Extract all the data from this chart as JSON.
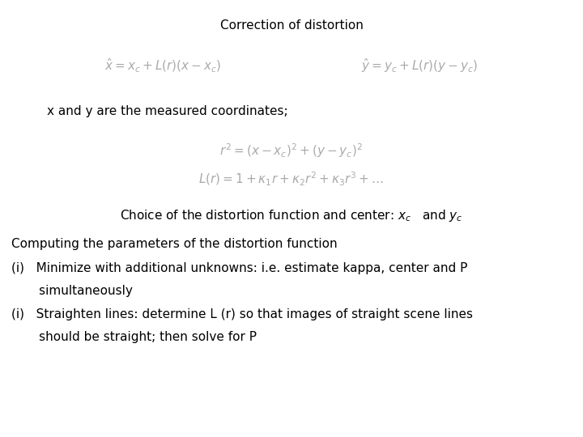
{
  "title": "Correction of distortion",
  "eq1": "$\\hat{x} = x_c + L(r)(x - x_c)$",
  "eq2": "$\\hat{y} = y_c + L(r)(y - y_c)$",
  "text1": "x and y are the measured coordinates;",
  "eq3": "$r^2 = (x - x_c)^2 + (y - y_c)^2$",
  "eq4": "$L(r) = 1 + \\kappa_1 r + \\kappa_2 r^2 + \\kappa_3 r^3 + \\ldots$",
  "text2": "Choice of the distortion function and center: $x_c$   and $y_c$",
  "text3": "Computing the parameters of the distortion function",
  "item1a": "(i)   Minimize with additional unknowns: i.e. estimate kappa, center and P",
  "item1b": "       simultaneously",
  "item2a": "(i)   Straighten lines: determine L (r) so that images of straight scene lines",
  "item2b": "       should be straight; then solve for P",
  "bg_color": "#ffffff",
  "text_color": "#000000",
  "eq_color": "#aaaaaa",
  "title_fontsize": 11,
  "eq_fontsize": 11,
  "body_fontsize": 11,
  "choice_fontsize": 11
}
